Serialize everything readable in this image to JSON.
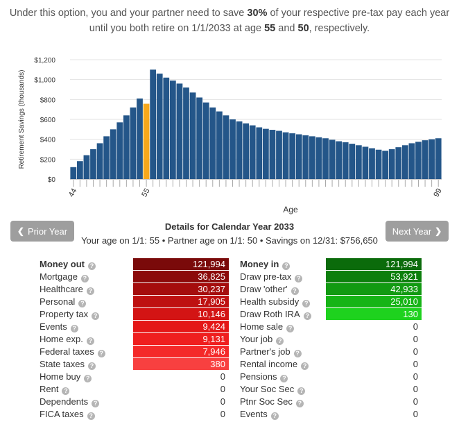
{
  "headline": {
    "line1_a": "Under this option, you and your partner need to save ",
    "savings_pct": "30%",
    "line1_b": " of your respective pre-tax pay each year",
    "line2_a": "until you both retire on 1/1/2033 at age ",
    "age_you": "55",
    "line2_b": " and ",
    "age_partner": "50",
    "line2_c": ", respectively."
  },
  "nav": {
    "prior_label": "Prior Year",
    "next_label": "Next Year"
  },
  "details": {
    "title": "Details for Calendar Year 2033",
    "subtitle": "Your age on 1/1: 55 • Partner age on 1/1: 50 • Savings on 12/31: $756,650"
  },
  "money_out": [
    {
      "label": "Money out",
      "value": "121,994",
      "color": "#7a0a0a",
      "bold": true
    },
    {
      "label": "Mortgage",
      "value": "36,825",
      "color": "#8b0a0a"
    },
    {
      "label": "Healthcare",
      "value": "30,237",
      "color": "#a50d0d"
    },
    {
      "label": "Personal",
      "value": "17,905",
      "color": "#be1111"
    },
    {
      "label": "Property tax",
      "value": "10,146",
      "color": "#d31414"
    },
    {
      "label": "Events",
      "value": "9,424",
      "color": "#e41717"
    },
    {
      "label": "Home exp.",
      "value": "9,131",
      "color": "#ef1e1e"
    },
    {
      "label": "Federal taxes",
      "value": "7,946",
      "color": "#f42929"
    },
    {
      "label": "State taxes",
      "value": "380",
      "color": "#f84040"
    },
    {
      "label": "Home buy",
      "value": "0",
      "color": ""
    },
    {
      "label": "Rent",
      "value": "0",
      "color": ""
    },
    {
      "label": "Dependents",
      "value": "0",
      "color": ""
    },
    {
      "label": "FICA taxes",
      "value": "0",
      "color": ""
    }
  ],
  "money_in": [
    {
      "label": "Money in",
      "value": "121,994",
      "color": "#0b6b0b",
      "bold": true
    },
    {
      "label": "Draw pre-tax",
      "value": "53,921",
      "color": "#0d7f0d"
    },
    {
      "label": "Draw 'other'",
      "value": "42,933",
      "color": "#129a12"
    },
    {
      "label": "Health subsidy",
      "value": "25,010",
      "color": "#16b416"
    },
    {
      "label": "Draw Roth IRA",
      "value": "130",
      "color": "#1ed21e"
    },
    {
      "label": "Home sale",
      "value": "0",
      "color": ""
    },
    {
      "label": "Your job",
      "value": "0",
      "color": ""
    },
    {
      "label": "Partner's job",
      "value": "0",
      "color": ""
    },
    {
      "label": "Rental income",
      "value": "0",
      "color": ""
    },
    {
      "label": "Pensions",
      "value": "0",
      "color": ""
    },
    {
      "label": "Your Soc Sec",
      "value": "0",
      "color": ""
    },
    {
      "label": "Ptnr Soc Sec",
      "value": "0",
      "color": ""
    },
    {
      "label": "Events",
      "value": "0",
      "color": ""
    }
  ],
  "chart_data": {
    "type": "bar",
    "ylabel": "Retirement Savings (thousands)",
    "xlabel": "Age",
    "y_ticks": [
      "$0",
      "$200",
      "$400",
      "$600",
      "$800",
      "$1,000",
      "$1,200"
    ],
    "ylim": [
      0,
      1200
    ],
    "x_tick_labels": [
      {
        "age": 44,
        "label": "44"
      },
      {
        "age": 55,
        "label": "55"
      },
      {
        "age": 99,
        "label": "99"
      }
    ],
    "grid": true,
    "colors": {
      "bar": "#245689",
      "highlight": "#f7a81b"
    },
    "highlight_age": 55,
    "ages": [
      44,
      45,
      46,
      47,
      48,
      49,
      50,
      51,
      52,
      53,
      54,
      55,
      56,
      57,
      58,
      59,
      60,
      61,
      62,
      63,
      64,
      65,
      66,
      67,
      68,
      69,
      70,
      71,
      72,
      73,
      74,
      75,
      76,
      77,
      78,
      79,
      80,
      81,
      82,
      83,
      84,
      85,
      86,
      87,
      88,
      89,
      90,
      91,
      92,
      93,
      94,
      95,
      96,
      97,
      98,
      99
    ],
    "values": [
      120,
      180,
      240,
      300,
      360,
      430,
      500,
      570,
      640,
      720,
      810,
      757,
      1100,
      1060,
      1020,
      990,
      960,
      920,
      870,
      820,
      770,
      720,
      680,
      640,
      600,
      580,
      560,
      540,
      520,
      505,
      495,
      485,
      470,
      460,
      450,
      440,
      430,
      420,
      410,
      395,
      380,
      370,
      355,
      340,
      325,
      310,
      295,
      285,
      300,
      320,
      340,
      360,
      375,
      390,
      400,
      410
    ]
  }
}
